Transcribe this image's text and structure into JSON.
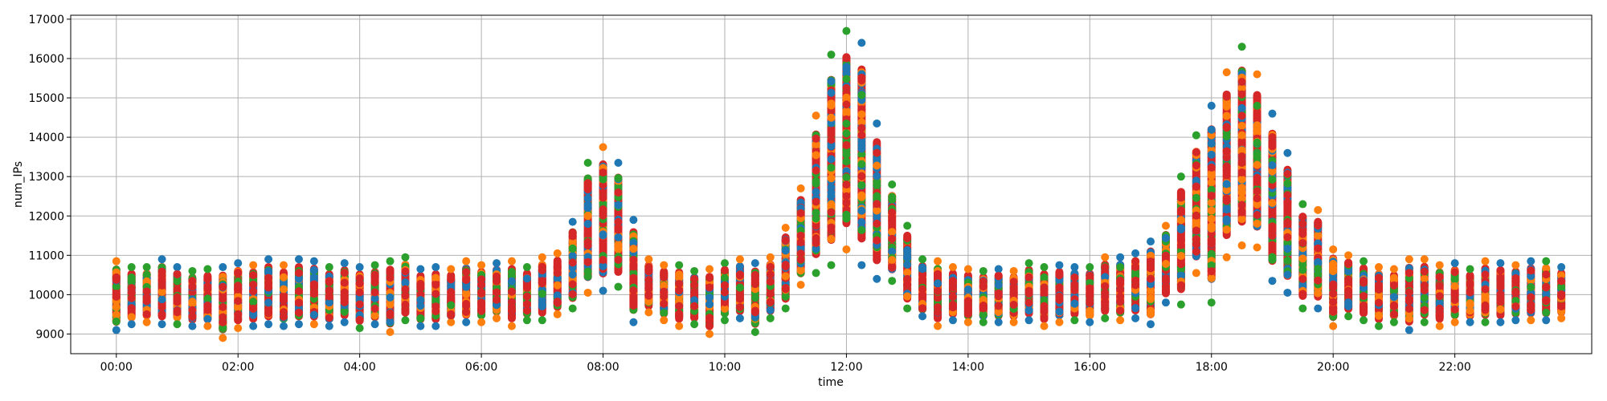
{
  "chart_data": {
    "type": "scatter",
    "xlabel": "time",
    "ylabel": "num_IPs",
    "xlim": [
      "-00:45",
      "24:15"
    ],
    "ylim": [
      8500,
      17100
    ],
    "x_ticks": [
      "00:00",
      "02:00",
      "04:00",
      "06:00",
      "08:00",
      "10:00",
      "12:00",
      "14:00",
      "16:00",
      "18:00",
      "20:00",
      "22:00"
    ],
    "y_ticks": [
      9000,
      10000,
      11000,
      12000,
      13000,
      14000,
      15000,
      16000,
      17000
    ],
    "grid": true,
    "x_sampling": "every 15 minutes, 00:00 to 23:45",
    "series_colors": [
      "#1f77b4",
      "#ff7f0e",
      "#2ca02c",
      "#d62728"
    ],
    "column_ranges": [
      {
        "time": "00:00",
        "min": 9100,
        "max": 10850
      },
      {
        "time": "00:15",
        "min": 9250,
        "max": 10700
      },
      {
        "time": "00:30",
        "min": 9300,
        "max": 10700
      },
      {
        "time": "00:45",
        "min": 9250,
        "max": 10900
      },
      {
        "time": "01:00",
        "min": 9250,
        "max": 10700
      },
      {
        "time": "01:15",
        "min": 9200,
        "max": 10600
      },
      {
        "time": "01:30",
        "min": 9200,
        "max": 10650
      },
      {
        "time": "01:45",
        "min": 8900,
        "max": 10700
      },
      {
        "time": "02:00",
        "min": 9150,
        "max": 10800
      },
      {
        "time": "02:15",
        "min": 9200,
        "max": 10750
      },
      {
        "time": "02:30",
        "min": 9250,
        "max": 10900
      },
      {
        "time": "02:45",
        "min": 9200,
        "max": 10750
      },
      {
        "time": "03:00",
        "min": 9250,
        "max": 10900
      },
      {
        "time": "03:15",
        "min": 9250,
        "max": 10850
      },
      {
        "time": "03:30",
        "min": 9200,
        "max": 10700
      },
      {
        "time": "03:45",
        "min": 9300,
        "max": 10800
      },
      {
        "time": "04:00",
        "min": 9150,
        "max": 10700
      },
      {
        "time": "04:15",
        "min": 9250,
        "max": 10750
      },
      {
        "time": "04:30",
        "min": 9050,
        "max": 10850
      },
      {
        "time": "04:45",
        "min": 9350,
        "max": 10950
      },
      {
        "time": "05:00",
        "min": 9200,
        "max": 10650
      },
      {
        "time": "05:15",
        "min": 9200,
        "max": 10700
      },
      {
        "time": "05:30",
        "min": 9300,
        "max": 10650
      },
      {
        "time": "05:45",
        "min": 9300,
        "max": 10850
      },
      {
        "time": "06:00",
        "min": 9300,
        "max": 10750
      },
      {
        "time": "06:15",
        "min": 9400,
        "max": 10800
      },
      {
        "time": "06:30",
        "min": 9200,
        "max": 10850
      },
      {
        "time": "06:45",
        "min": 9350,
        "max": 10700
      },
      {
        "time": "07:00",
        "min": 9350,
        "max": 10950
      },
      {
        "time": "07:15",
        "min": 9500,
        "max": 11050
      },
      {
        "time": "07:30",
        "min": 9650,
        "max": 11850
      },
      {
        "time": "07:45",
        "min": 10050,
        "max": 13350
      },
      {
        "time": "08:00",
        "min": 10100,
        "max": 13750
      },
      {
        "time": "08:15",
        "min": 10200,
        "max": 13350
      },
      {
        "time": "08:30",
        "min": 9300,
        "max": 11900
      },
      {
        "time": "08:45",
        "min": 9550,
        "max": 10900
      },
      {
        "time": "09:00",
        "min": 9350,
        "max": 10750
      },
      {
        "time": "09:15",
        "min": 9200,
        "max": 10750
      },
      {
        "time": "09:30",
        "min": 9250,
        "max": 10600
      },
      {
        "time": "09:45",
        "min": 9000,
        "max": 10650
      },
      {
        "time": "10:00",
        "min": 9350,
        "max": 10800
      },
      {
        "time": "10:15",
        "min": 9400,
        "max": 10900
      },
      {
        "time": "10:30",
        "min": 9050,
        "max": 10800
      },
      {
        "time": "10:45",
        "min": 9400,
        "max": 10950
      },
      {
        "time": "11:00",
        "min": 9650,
        "max": 11700
      },
      {
        "time": "11:15",
        "min": 10250,
        "max": 12700
      },
      {
        "time": "11:30",
        "min": 10550,
        "max": 14550
      },
      {
        "time": "11:45",
        "min": 10750,
        "max": 16100
      },
      {
        "time": "12:00",
        "min": 11150,
        "max": 16700
      },
      {
        "time": "12:15",
        "min": 10750,
        "max": 16400
      },
      {
        "time": "12:30",
        "min": 10400,
        "max": 14350
      },
      {
        "time": "12:45",
        "min": 10350,
        "max": 12800
      },
      {
        "time": "13:00",
        "min": 9650,
        "max": 11750
      },
      {
        "time": "13:15",
        "min": 9450,
        "max": 10900
      },
      {
        "time": "13:30",
        "min": 9200,
        "max": 10850
      },
      {
        "time": "13:45",
        "min": 9350,
        "max": 10700
      },
      {
        "time": "14:00",
        "min": 9300,
        "max": 10650
      },
      {
        "time": "14:15",
        "min": 9300,
        "max": 10600
      },
      {
        "time": "14:30",
        "min": 9300,
        "max": 10650
      },
      {
        "time": "14:45",
        "min": 9300,
        "max": 10600
      },
      {
        "time": "15:00",
        "min": 9350,
        "max": 10800
      },
      {
        "time": "15:15",
        "min": 9200,
        "max": 10700
      },
      {
        "time": "15:30",
        "min": 9300,
        "max": 10750
      },
      {
        "time": "15:45",
        "min": 9350,
        "max": 10700
      },
      {
        "time": "16:00",
        "min": 9300,
        "max": 10700
      },
      {
        "time": "16:15",
        "min": 9400,
        "max": 10950
      },
      {
        "time": "16:30",
        "min": 9350,
        "max": 10950
      },
      {
        "time": "16:45",
        "min": 9400,
        "max": 11050
      },
      {
        "time": "17:00",
        "min": 9250,
        "max": 11350
      },
      {
        "time": "17:15",
        "min": 9800,
        "max": 11750
      },
      {
        "time": "17:30",
        "min": 9750,
        "max": 13000
      },
      {
        "time": "17:45",
        "min": 10550,
        "max": 14050
      },
      {
        "time": "18:00",
        "min": 9800,
        "max": 14800
      },
      {
        "time": "18:15",
        "min": 10950,
        "max": 15650
      },
      {
        "time": "18:30",
        "min": 11250,
        "max": 16300
      },
      {
        "time": "18:45",
        "min": 11200,
        "max": 15600
      },
      {
        "time": "19:00",
        "min": 10350,
        "max": 14600
      },
      {
        "time": "19:15",
        "min": 10050,
        "max": 13600
      },
      {
        "time": "19:30",
        "min": 9650,
        "max": 12300
      },
      {
        "time": "19:45",
        "min": 9650,
        "max": 12150
      },
      {
        "time": "20:00",
        "min": 9200,
        "max": 11150
      },
      {
        "time": "20:15",
        "min": 9450,
        "max": 11000
      },
      {
        "time": "20:30",
        "min": 9350,
        "max": 10850
      },
      {
        "time": "20:45",
        "min": 9200,
        "max": 10700
      },
      {
        "time": "21:00",
        "min": 9300,
        "max": 10650
      },
      {
        "time": "21:15",
        "min": 9100,
        "max": 10900
      },
      {
        "time": "21:30",
        "min": 9300,
        "max": 10900
      },
      {
        "time": "21:45",
        "min": 9200,
        "max": 10750
      },
      {
        "time": "22:00",
        "min": 9300,
        "max": 10800
      },
      {
        "time": "22:15",
        "min": 9300,
        "max": 10650
      },
      {
        "time": "22:30",
        "min": 9300,
        "max": 10850
      },
      {
        "time": "22:45",
        "min": 9300,
        "max": 10800
      },
      {
        "time": "23:00",
        "min": 9350,
        "max": 10750
      },
      {
        "time": "23:15",
        "min": 9350,
        "max": 10850
      },
      {
        "time": "23:30",
        "min": 9350,
        "max": 10850
      },
      {
        "time": "23:45",
        "min": 9400,
        "max": 10700
      }
    ]
  }
}
